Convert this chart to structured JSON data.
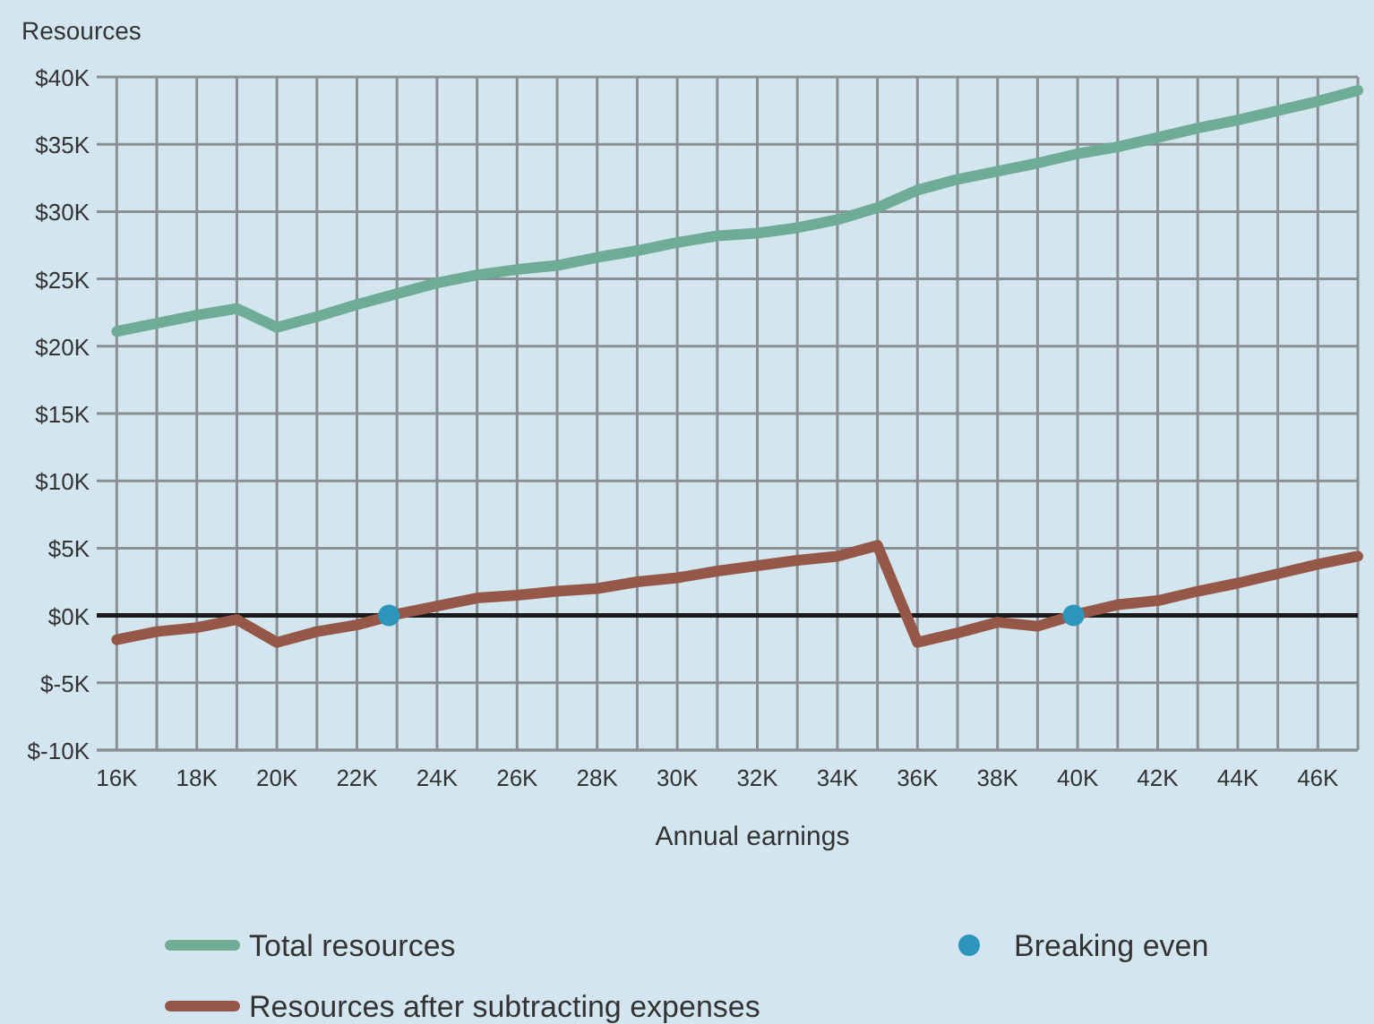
{
  "chart_data": {
    "type": "line",
    "xlabel": "Annual earnings",
    "ylabel": "Resources",
    "x": [
      16000,
      17000,
      18000,
      19000,
      20000,
      21000,
      22000,
      23000,
      24000,
      25000,
      26000,
      27000,
      28000,
      29000,
      30000,
      31000,
      32000,
      33000,
      34000,
      35000,
      36000,
      37000,
      38000,
      39000,
      40000,
      41000,
      42000,
      43000,
      44000,
      45000,
      46000,
      47000
    ],
    "series": [
      {
        "name": "Total resources",
        "color": "#6fac96",
        "values": [
          21100,
          21700,
          22300,
          22800,
          21400,
          22200,
          23100,
          23900,
          24700,
          25300,
          25700,
          26000,
          26600,
          27100,
          27700,
          28200,
          28400,
          28800,
          29400,
          30300,
          31600,
          32400,
          33000,
          33600,
          34300,
          34800,
          35500,
          36200,
          36800,
          37500,
          38200,
          39000
        ]
      },
      {
        "name": "Resources after subtracting expenses",
        "color": "#955747",
        "values": [
          -1800,
          -1200,
          -900,
          -300,
          -2000,
          -1200,
          -700,
          100,
          700,
          1300,
          1500,
          1800,
          2000,
          2500,
          2800,
          3300,
          3700,
          4100,
          4400,
          5200,
          -2000,
          -1300,
          -500,
          -800,
          100,
          800,
          1100,
          1800,
          2400,
          3100,
          3800,
          4400
        ]
      },
      {
        "name": "Breaking even",
        "type": "scatter",
        "color": "#2e96bb",
        "x": [
          22800,
          39900
        ],
        "values": [
          0,
          0
        ]
      }
    ],
    "xlim": [
      15500,
      47000
    ],
    "xticks": [
      {
        "value": 16000,
        "label": "16K"
      },
      {
        "value": 17000,
        "label": null
      },
      {
        "value": 18000,
        "label": "18K"
      },
      {
        "value": 19000,
        "label": null
      },
      {
        "value": 20000,
        "label": "20K"
      },
      {
        "value": 21000,
        "label": null
      },
      {
        "value": 22000,
        "label": "22K"
      },
      {
        "value": 23000,
        "label": null
      },
      {
        "value": 24000,
        "label": "24K"
      },
      {
        "value": 25000,
        "label": null
      },
      {
        "value": 26000,
        "label": "26K"
      },
      {
        "value": 27000,
        "label": null
      },
      {
        "value": 28000,
        "label": "28K"
      },
      {
        "value": 29000,
        "label": null
      },
      {
        "value": 30000,
        "label": "30K"
      },
      {
        "value": 31000,
        "label": null
      },
      {
        "value": 32000,
        "label": "32K"
      },
      {
        "value": 33000,
        "label": null
      },
      {
        "value": 34000,
        "label": "34K"
      },
      {
        "value": 35000,
        "label": null
      },
      {
        "value": 36000,
        "label": "36K"
      },
      {
        "value": 37000,
        "label": null
      },
      {
        "value": 38000,
        "label": "38K"
      },
      {
        "value": 39000,
        "label": null
      },
      {
        "value": 40000,
        "label": "40K"
      },
      {
        "value": 41000,
        "label": null
      },
      {
        "value": 42000,
        "label": "42K"
      },
      {
        "value": 43000,
        "label": null
      },
      {
        "value": 44000,
        "label": "44K"
      },
      {
        "value": 45000,
        "label": null
      },
      {
        "value": 46000,
        "label": "46K"
      },
      {
        "value": 47000,
        "label": null
      }
    ],
    "ylim": [
      -10000,
      40000
    ],
    "yticks": [
      {
        "value": -10000,
        "label": "$-10K"
      },
      {
        "value": -5000,
        "label": "$-5K"
      },
      {
        "value": 0,
        "label": "$0K"
      },
      {
        "value": 5000,
        "label": "$5K"
      },
      {
        "value": 10000,
        "label": "$10K"
      },
      {
        "value": 15000,
        "label": "$15K"
      },
      {
        "value": 20000,
        "label": "$20K"
      },
      {
        "value": 25000,
        "label": "$25K"
      },
      {
        "value": 30000,
        "label": "$30K"
      },
      {
        "value": 35000,
        "label": "$35K"
      },
      {
        "value": 40000,
        "label": "$40K"
      }
    ],
    "ref_lines": [
      {
        "axis": "y",
        "value": 0,
        "color": "#1a1a1a"
      }
    ],
    "grid": true,
    "legend": "bottom",
    "line_style": "solid"
  }
}
